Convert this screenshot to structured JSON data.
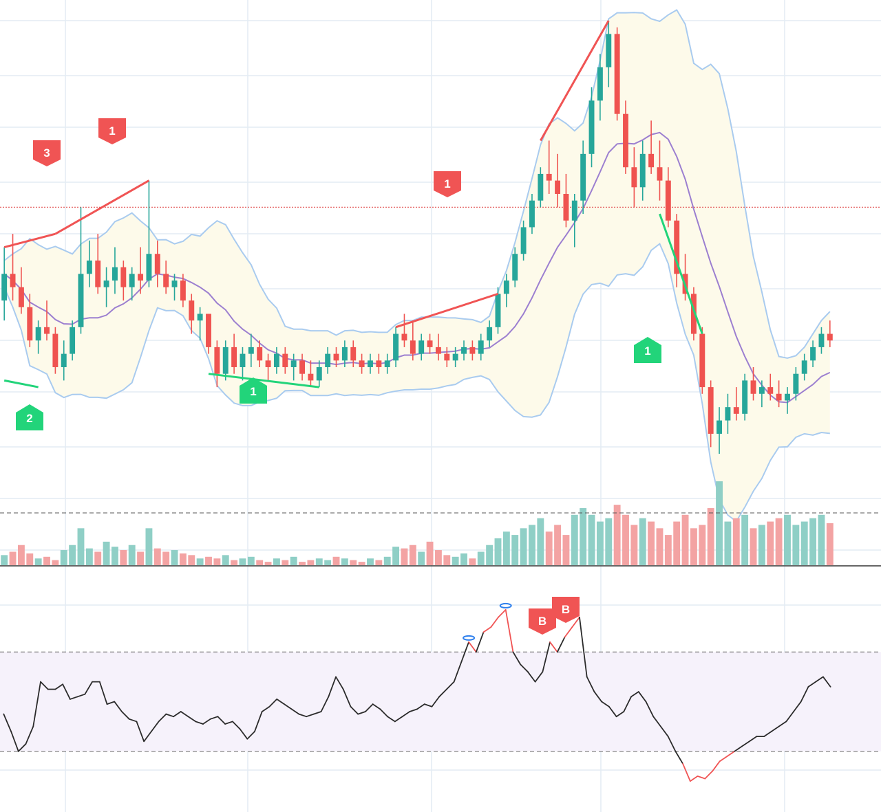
{
  "colors": {
    "up": "#26a69a",
    "down": "#ef5350",
    "up_volume": "#8fcfc6",
    "down_volume": "#f3a3a3",
    "basis": "#9c7fd0",
    "bands": "#a9cbef",
    "band_fill": "#fdfaea",
    "rsi_line": "#2b2b2b",
    "rsi_band_fill": "#f6f2fb",
    "price_line": "#e35d5d",
    "grid": "#e3ecf4",
    "signal_bear": "#f05454",
    "signal_bull": "#22d47a",
    "pivot_marker": "#2f80ed"
  },
  "chart_data": [
    {
      "type": "candlestick",
      "title": "",
      "price_level_line": 0.72,
      "series": [
        {
          "name": "",
          "values": [
            [
              0.58,
              0.66,
              0.55,
              0.62
            ],
            [
              0.62,
              0.68,
              0.58,
              0.6
            ],
            [
              0.6,
              0.63,
              0.56,
              0.57
            ],
            [
              0.57,
              0.59,
              0.51,
              0.52
            ],
            [
              0.52,
              0.55,
              0.5,
              0.54
            ],
            [
              0.54,
              0.58,
              0.52,
              0.53
            ],
            [
              0.53,
              0.54,
              0.47,
              0.48
            ],
            [
              0.48,
              0.52,
              0.46,
              0.5
            ],
            [
              0.5,
              0.55,
              0.49,
              0.54
            ],
            [
              0.54,
              0.72,
              0.53,
              0.62
            ],
            [
              0.62,
              0.67,
              0.6,
              0.64
            ],
            [
              0.64,
              0.68,
              0.59,
              0.6
            ],
            [
              0.6,
              0.63,
              0.57,
              0.61
            ],
            [
              0.61,
              0.66,
              0.59,
              0.63
            ],
            [
              0.63,
              0.64,
              0.58,
              0.6
            ],
            [
              0.6,
              0.63,
              0.58,
              0.62
            ],
            [
              0.62,
              0.66,
              0.59,
              0.61
            ],
            [
              0.61,
              0.76,
              0.6,
              0.65
            ],
            [
              0.65,
              0.67,
              0.6,
              0.62
            ],
            [
              0.62,
              0.64,
              0.59,
              0.6
            ],
            [
              0.6,
              0.62,
              0.58,
              0.61
            ],
            [
              0.61,
              0.62,
              0.57,
              0.58
            ],
            [
              0.58,
              0.59,
              0.53,
              0.55
            ],
            [
              0.55,
              0.57,
              0.52,
              0.56
            ],
            [
              0.56,
              0.56,
              0.5,
              0.51
            ],
            [
              0.51,
              0.52,
              0.45,
              0.47
            ],
            [
              0.47,
              0.52,
              0.46,
              0.51
            ],
            [
              0.51,
              0.53,
              0.47,
              0.48
            ],
            [
              0.48,
              0.51,
              0.46,
              0.5
            ],
            [
              0.5,
              0.53,
              0.48,
              0.51
            ],
            [
              0.51,
              0.52,
              0.48,
              0.49
            ],
            [
              0.49,
              0.5,
              0.46,
              0.48
            ],
            [
              0.48,
              0.51,
              0.47,
              0.5
            ],
            [
              0.5,
              0.51,
              0.47,
              0.48
            ],
            [
              0.48,
              0.5,
              0.46,
              0.49
            ],
            [
              0.49,
              0.5,
              0.46,
              0.47
            ],
            [
              0.47,
              0.49,
              0.45,
              0.46
            ],
            [
              0.46,
              0.49,
              0.45,
              0.48
            ],
            [
              0.48,
              0.51,
              0.47,
              0.5
            ],
            [
              0.5,
              0.51,
              0.48,
              0.49
            ],
            [
              0.49,
              0.52,
              0.48,
              0.51
            ],
            [
              0.51,
              0.52,
              0.48,
              0.49
            ],
            [
              0.49,
              0.5,
              0.47,
              0.48
            ],
            [
              0.48,
              0.5,
              0.47,
              0.49
            ],
            [
              0.49,
              0.5,
              0.47,
              0.48
            ],
            [
              0.48,
              0.5,
              0.47,
              0.49
            ],
            [
              0.49,
              0.54,
              0.48,
              0.53
            ],
            [
              0.53,
              0.56,
              0.51,
              0.52
            ],
            [
              0.52,
              0.55,
              0.49,
              0.5
            ],
            [
              0.5,
              0.53,
              0.49,
              0.52
            ],
            [
              0.52,
              0.53,
              0.5,
              0.51
            ],
            [
              0.51,
              0.53,
              0.49,
              0.5
            ],
            [
              0.5,
              0.51,
              0.48,
              0.49
            ],
            [
              0.49,
              0.51,
              0.48,
              0.5
            ],
            [
              0.5,
              0.52,
              0.49,
              0.51
            ],
            [
              0.51,
              0.52,
              0.49,
              0.5
            ],
            [
              0.5,
              0.53,
              0.49,
              0.52
            ],
            [
              0.52,
              0.55,
              0.51,
              0.54
            ],
            [
              0.54,
              0.6,
              0.53,
              0.59
            ],
            [
              0.59,
              0.62,
              0.57,
              0.61
            ],
            [
              0.61,
              0.66,
              0.6,
              0.65
            ],
            [
              0.65,
              0.7,
              0.64,
              0.69
            ],
            [
              0.69,
              0.74,
              0.68,
              0.73
            ],
            [
              0.73,
              0.78,
              0.72,
              0.77
            ],
            [
              0.77,
              0.82,
              0.74,
              0.76
            ],
            [
              0.76,
              0.8,
              0.72,
              0.74
            ],
            [
              0.74,
              0.77,
              0.69,
              0.7
            ],
            [
              0.7,
              0.74,
              0.66,
              0.73
            ],
            [
              0.73,
              0.82,
              0.71,
              0.8
            ],
            [
              0.8,
              0.9,
              0.78,
              0.88
            ],
            [
              0.88,
              0.95,
              0.85,
              0.93
            ],
            [
              0.93,
              1.0,
              0.9,
              0.98
            ],
            [
              0.98,
              0.99,
              0.85,
              0.86
            ],
            [
              0.86,
              0.88,
              0.77,
              0.78
            ],
            [
              0.78,
              0.81,
              0.72,
              0.75
            ],
            [
              0.75,
              0.82,
              0.73,
              0.8
            ],
            [
              0.8,
              0.85,
              0.77,
              0.78
            ],
            [
              0.78,
              0.82,
              0.73,
              0.76
            ],
            [
              0.76,
              0.78,
              0.69,
              0.7
            ],
            [
              0.7,
              0.71,
              0.6,
              0.62
            ],
            [
              0.62,
              0.65,
              0.58,
              0.59
            ],
            [
              0.59,
              0.6,
              0.52,
              0.53
            ],
            [
              0.53,
              0.54,
              0.44,
              0.45
            ],
            [
              0.45,
              0.46,
              0.36,
              0.38
            ],
            [
              0.38,
              0.42,
              0.35,
              0.4
            ],
            [
              0.4,
              0.44,
              0.38,
              0.42
            ],
            [
              0.42,
              0.45,
              0.4,
              0.41
            ],
            [
              0.41,
              0.47,
              0.4,
              0.46
            ],
            [
              0.46,
              0.48,
              0.43,
              0.44
            ],
            [
              0.44,
              0.46,
              0.42,
              0.45
            ],
            [
              0.45,
              0.47,
              0.43,
              0.44
            ],
            [
              0.44,
              0.46,
              0.42,
              0.43
            ],
            [
              0.43,
              0.45,
              0.41,
              0.44
            ],
            [
              0.44,
              0.48,
              0.43,
              0.47
            ],
            [
              0.47,
              0.5,
              0.46,
              0.49
            ],
            [
              0.49,
              0.52,
              0.48,
              0.51
            ],
            [
              0.51,
              0.54,
              0.5,
              0.53
            ],
            [
              0.53,
              0.55,
              0.51,
              0.52
            ]
          ]
        }
      ],
      "volume": {
        "values": [
          6,
          8,
          12,
          7,
          4,
          5,
          3,
          9,
          12,
          22,
          10,
          8,
          14,
          11,
          9,
          12,
          8,
          22,
          10,
          8,
          9,
          7,
          6,
          4,
          5,
          4,
          6,
          3,
          4,
          5,
          3,
          2,
          4,
          3,
          5,
          2,
          3,
          4,
          3,
          5,
          4,
          3,
          2,
          4,
          3,
          5,
          11,
          10,
          12,
          8,
          14,
          9,
          6,
          5,
          7,
          4,
          8,
          12,
          16,
          20,
          18,
          22,
          24,
          28,
          20,
          24,
          18,
          30,
          34,
          30,
          26,
          28,
          36,
          30,
          24,
          28,
          26,
          22,
          18,
          26,
          30,
          22,
          24,
          34,
          50,
          26,
          28,
          30,
          22,
          24,
          26,
          28,
          30,
          24,
          26,
          28,
          30,
          25
        ]
      },
      "signal_badges": [
        {
          "label": "3",
          "kind": "bear"
        },
        {
          "label": "1",
          "kind": "bear"
        },
        {
          "label": "1",
          "kind": "bear"
        },
        {
          "label": "2",
          "kind": "bull"
        },
        {
          "label": "1",
          "kind": "bull"
        },
        {
          "label": "1",
          "kind": "bull"
        }
      ]
    },
    {
      "type": "line",
      "title": "",
      "upper_level": 70,
      "lower_level": 30,
      "ylim": [
        10,
        95
      ],
      "series": [
        {
          "name": "",
          "values": [
            45,
            38,
            30,
            33,
            40,
            58,
            55,
            55,
            57,
            51,
            52,
            53,
            58,
            58,
            49,
            50,
            46,
            43,
            42,
            34,
            38,
            42,
            45,
            44,
            46,
            44,
            42,
            41,
            43,
            44,
            41,
            42,
            39,
            35,
            38,
            46,
            48,
            51,
            49,
            47,
            45,
            44,
            45,
            46,
            52,
            60,
            55,
            48,
            45,
            46,
            49,
            47,
            44,
            42,
            44,
            46,
            47,
            49,
            48,
            52,
            55,
            58,
            66,
            74,
            70,
            78,
            80,
            84,
            87,
            70,
            65,
            62,
            58,
            62,
            74,
            70,
            76,
            80,
            84,
            60,
            54,
            50,
            48,
            44,
            46,
            52,
            54,
            50,
            44,
            40,
            36,
            30,
            25,
            18,
            20,
            19,
            22,
            26,
            28,
            30,
            32,
            34,
            36,
            36,
            38,
            40,
            42,
            46,
            50,
            56,
            58,
            60,
            56
          ]
        }
      ],
      "badges": [
        {
          "label": "B"
        },
        {
          "label": "B"
        }
      ]
    }
  ]
}
